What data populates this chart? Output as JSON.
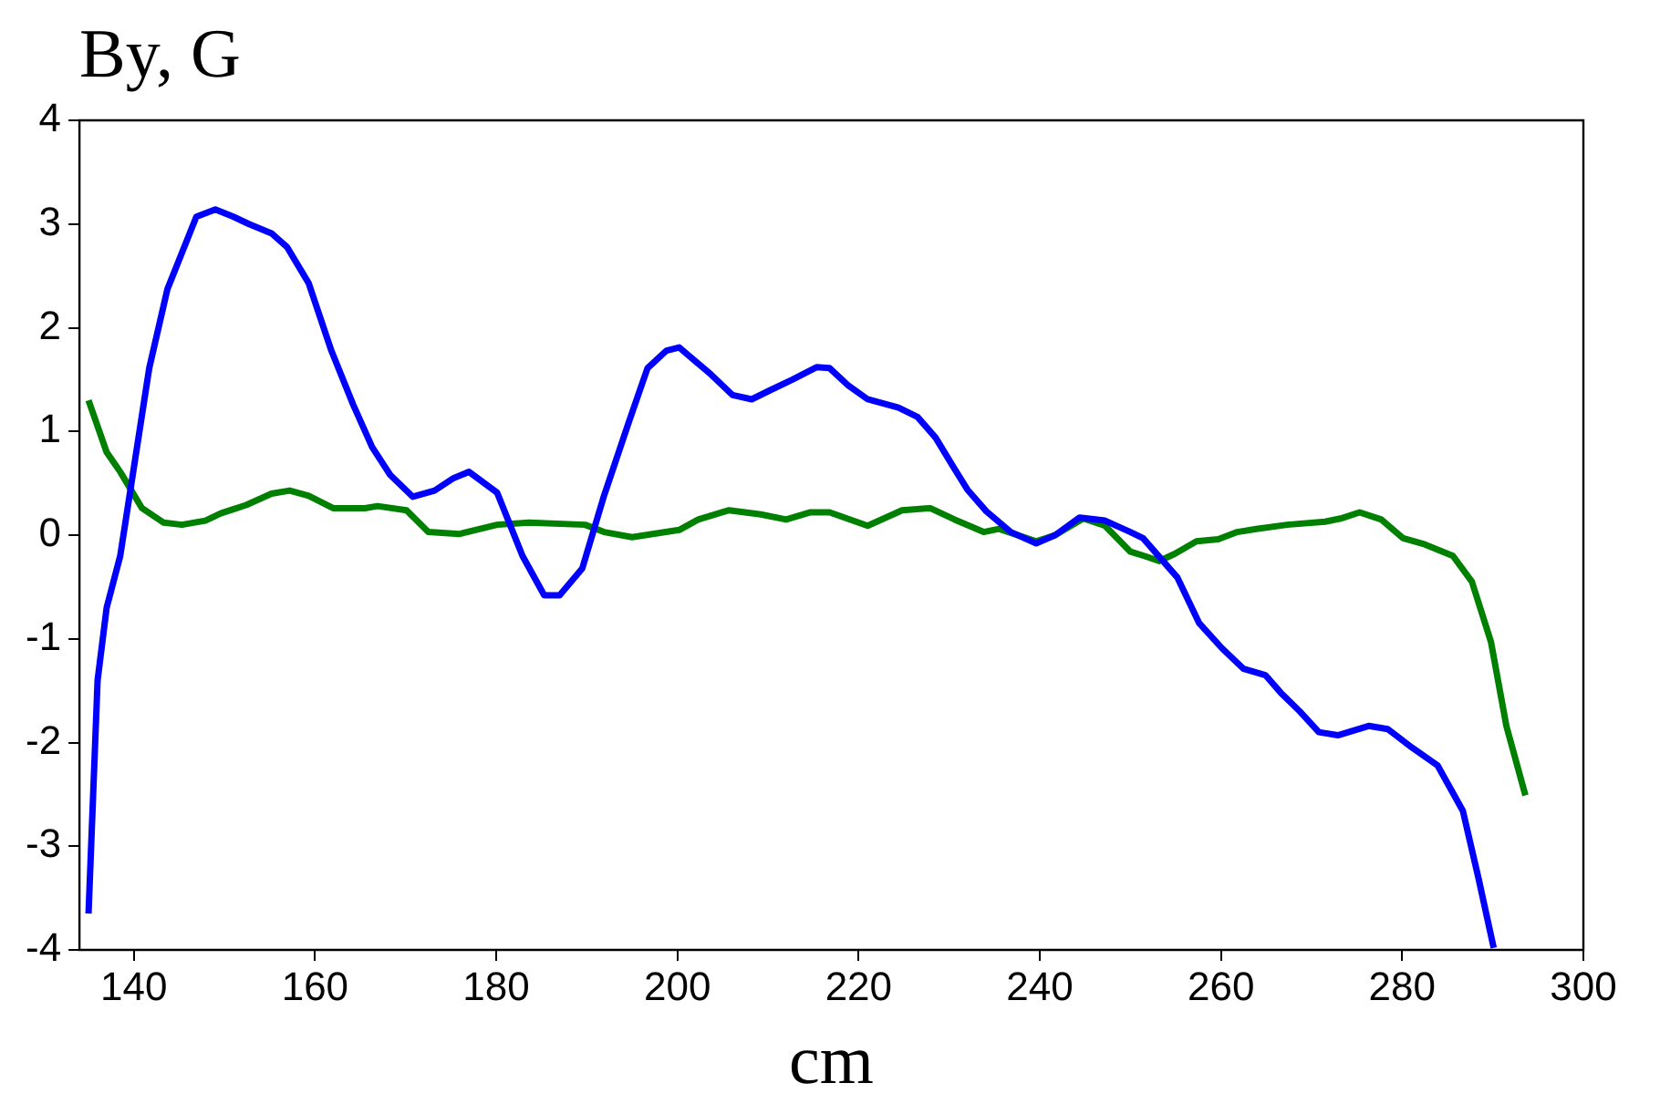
{
  "chart_data": {
    "type": "line",
    "ylabel": "By, G",
    "xlabel": "cm",
    "xlim": [
      134,
      300
    ],
    "xticks": [
      140,
      160,
      180,
      200,
      220,
      240,
      260,
      280,
      300
    ],
    "ylim": [
      -4,
      4
    ],
    "yticks": [
      -4,
      -3,
      -2,
      -1,
      0,
      1,
      2,
      3,
      4
    ],
    "grid": false,
    "legend": false,
    "marker": "none",
    "line_style": "solid",
    "series": [
      {
        "color": "#0000ff",
        "x": [
          135,
          136,
          137,
          138.5,
          141.7,
          143.7,
          146.9,
          149,
          151,
          152.7,
          155.2,
          156.9,
          159.3,
          161.8,
          164.2,
          166.3,
          168.3,
          170.8,
          173.2,
          175.3,
          177,
          180.1,
          182.9,
          185.3,
          187,
          189.5,
          191.9,
          194.6,
          196.7,
          198.8,
          200.2,
          203.7,
          206.1,
          208.2,
          210.3,
          212.7,
          215.4,
          216.8,
          218.9,
          221,
          224.4,
          226.5,
          228.5,
          230.3,
          232,
          234.1,
          236.8,
          239.6,
          241.7,
          244.4,
          247.2,
          250,
          251.4,
          253.2,
          255.2,
          257.6,
          260.1,
          262.5,
          264.9,
          266.6,
          268.7,
          270.8,
          272.9,
          276.3,
          278.4,
          281.1,
          283.9,
          286.7,
          288.4,
          290.1
        ],
        "values": [
          -3.65,
          -1.4,
          -0.7,
          -0.2,
          1.61,
          2.37,
          3.07,
          3.14,
          3.07,
          3,
          2.91,
          2.78,
          2.43,
          1.78,
          1.26,
          0.85,
          0.58,
          0.37,
          0.43,
          0.55,
          0.61,
          0.41,
          -0.2,
          -0.58,
          -0.58,
          -0.32,
          0.38,
          1.08,
          1.61,
          1.78,
          1.81,
          1.55,
          1.35,
          1.31,
          1.4,
          1.5,
          1.62,
          1.61,
          1.44,
          1.31,
          1.23,
          1.14,
          0.94,
          0.68,
          0.44,
          0.23,
          0.03,
          -0.08,
          0,
          0.17,
          0.14,
          0.03,
          -0.03,
          -0.21,
          -0.41,
          -0.85,
          -1.09,
          -1.29,
          -1.35,
          -1.52,
          -1.7,
          -1.9,
          -1.93,
          -1.84,
          -1.87,
          -2.05,
          -2.22,
          -2.66,
          -3.3,
          -3.98
        ]
      },
      {
        "color": "#008000",
        "x": [
          135,
          137,
          138.5,
          140.9,
          143.3,
          145.3,
          147.9,
          149.6,
          152.4,
          155.2,
          157.2,
          159.3,
          162,
          165.5,
          166.9,
          170.1,
          172.5,
          175.9,
          180.1,
          183.6,
          189.8,
          191.9,
          195,
          200.2,
          202.3,
          205.7,
          209.2,
          212,
          214.7,
          216.8,
          221,
          224.8,
          227.9,
          230.6,
          233.8,
          235.5,
          239.6,
          241.7,
          244.8,
          247.2,
          250,
          251.5,
          253.2,
          254.9,
          257.3,
          259.7,
          261.8,
          263.9,
          267.3,
          271.5,
          273.2,
          275.3,
          277.7,
          280.1,
          282.5,
          285.6,
          287.7,
          289.8,
          291.5,
          293.6
        ],
        "values": [
          1.3,
          0.8,
          0.61,
          0.26,
          0.12,
          0.1,
          0.14,
          0.21,
          0.29,
          0.4,
          0.43,
          0.38,
          0.26,
          0.26,
          0.28,
          0.24,
          0.03,
          0.01,
          0.1,
          0.12,
          0.1,
          0.03,
          -0.02,
          0.05,
          0.15,
          0.24,
          0.2,
          0.15,
          0.22,
          0.22,
          0.09,
          0.24,
          0.26,
          0.15,
          0.03,
          0.06,
          -0.06,
          0,
          0.16,
          0.09,
          -0.16,
          -0.2,
          -0.25,
          -0.18,
          -0.06,
          -0.04,
          0.03,
          0.06,
          0.1,
          0.13,
          0.16,
          0.22,
          0.15,
          -0.03,
          -0.09,
          -0.2,
          -0.45,
          -1.03,
          -1.84,
          -2.51
        ]
      }
    ]
  }
}
